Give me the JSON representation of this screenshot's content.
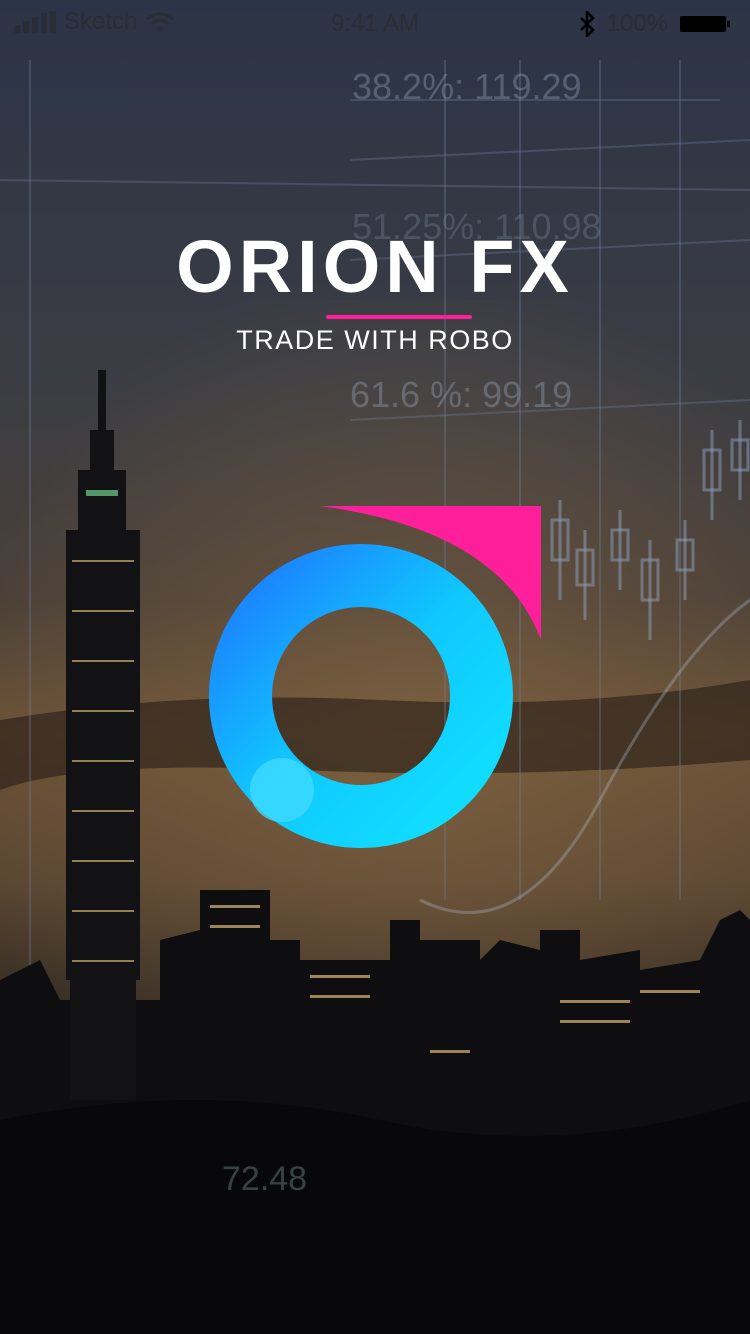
{
  "status_bar": {
    "carrier": "Sketch",
    "time": "9:41 AM",
    "battery": "100%",
    "icons": [
      "signal-icon",
      "wifi-icon",
      "bluetooth-icon",
      "battery-icon"
    ]
  },
  "splash": {
    "title": "ORION FX",
    "subtitle": "TRADE WITH ROBO"
  },
  "background": {
    "chart_labels": [
      "38.2%: 119.29",
      "51.25%: 110.98",
      "61.6 %: 99.19",
      "72.48"
    ]
  },
  "colors": {
    "accent_pink": "#ff1f9b",
    "logo_blue_light": "#10e6ff",
    "logo_blue_dark": "#1f6bff",
    "text": "#ffffff"
  }
}
